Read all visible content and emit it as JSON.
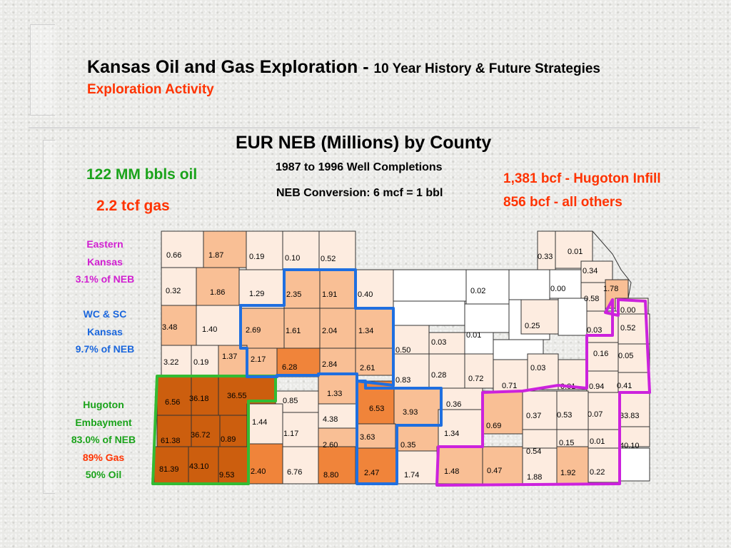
{
  "header": {
    "title_main": "Kansas Oil and Gas Exploration - ",
    "title_sub": "10 Year History & Future Strategies",
    "subtitle": "Exploration Activity"
  },
  "map": {
    "title": "EUR NEB (Millions) by County",
    "note_period": "1987 to 1996 Well Completions",
    "note_conversion": "NEB Conversion: 6 mcf = 1 bbl",
    "total_oil": "122 MM bbls oil",
    "total_gas": "2.2 tcf gas",
    "hugoton_infill": "1,381 bcf - Hugoton Infill",
    "all_others": "856 bcf - all others"
  },
  "regions": {
    "eastern": {
      "line1": "Eastern",
      "line2": "Kansas",
      "line3": "3.1% of NEB"
    },
    "wcsc": {
      "line1": "WC & SC",
      "line2": "Kansas",
      "line3": "9.7% of NEB"
    },
    "hugoton": {
      "line1": "Hugoton",
      "line2": "Embayment",
      "line3": "83.0% of NEB",
      "line4": "89% Gas",
      "line5": "50% Oil"
    }
  },
  "colors": {
    "very_light": "#fdece0",
    "light": "#f9bf95",
    "medium": "#f0843a",
    "dark": "#cc5e0e",
    "white": "#ffffff",
    "hugoton_border": "#33bb33",
    "wcsc_border": "#1f6fe0",
    "eastern_border": "#cc22dd",
    "total_oil_color": "#1aa31a",
    "gas_color": "#ff3300"
  },
  "county_values": [
    "0.66",
    "1.87",
    "0.19",
    "0.10",
    "0.52",
    "0.33",
    "0.01",
    "0.32",
    "1.86",
    "1.29",
    "2.35",
    "1.91",
    "0.40",
    "0.02",
    "0.34",
    "0.00",
    "1.78",
    "0.58",
    "0.00",
    "3.48",
    "1.40",
    "2.69",
    "1.61",
    "2.04",
    "1.34",
    "0.01",
    "0.25",
    "0.03",
    "0.52",
    "3.22",
    "0.19",
    "1.37",
    "2.17",
    "6.28",
    "2.84",
    "2.61",
    "0.50",
    "0.03",
    "0.16",
    "0.05",
    "0.83",
    "0.28",
    "0.72",
    "0.71",
    "0.03",
    "0.01",
    "0.94",
    "0.41",
    "6.56",
    "36.18",
    "36.55",
    "0.85",
    "1.33",
    "6.53",
    "3.93",
    "0.36",
    "0.69",
    "0.37",
    "0.53",
    "0.07",
    "33.83",
    "61.38",
    "36.72",
    "0.89",
    "1.44",
    "1.17",
    "4.38",
    "3.63",
    "2.60",
    "0.35",
    "1.34",
    "0.54",
    "0.15",
    "0.01",
    "40.10",
    "81.39",
    "43.10",
    "9.53",
    "2.40",
    "6.76",
    "8.80",
    "2.47",
    "1.74",
    "1.48",
    "0.47",
    "1.88",
    "1.92",
    "0.22"
  ]
}
